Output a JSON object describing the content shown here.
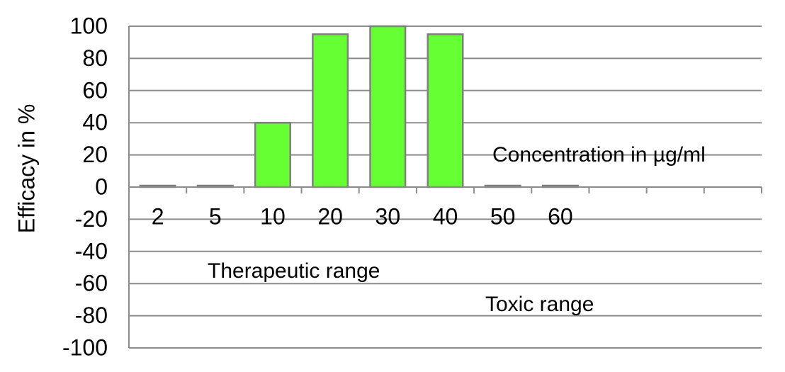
{
  "chart_data": {
    "type": "bar",
    "categories": [
      "2",
      "5",
      "10",
      "20",
      "30",
      "40",
      "50",
      "60",
      "",
      "",
      ""
    ],
    "values": [
      0,
      0,
      40,
      95,
      100,
      95,
      0,
      0,
      null,
      null,
      null
    ],
    "ylabel": "Efficacy in %",
    "ylim": [
      -100,
      100
    ],
    "yticks": [
      100,
      80,
      60,
      40,
      20,
      0,
      -20,
      -40,
      -60,
      -80,
      -100
    ],
    "grid": true,
    "bar_color": "#66ff33",
    "bar_edge_color": "#7f7f7f",
    "annotations": [
      "Concentration in µg/ml",
      "Therapeutic range",
      "Toxic range"
    ]
  }
}
